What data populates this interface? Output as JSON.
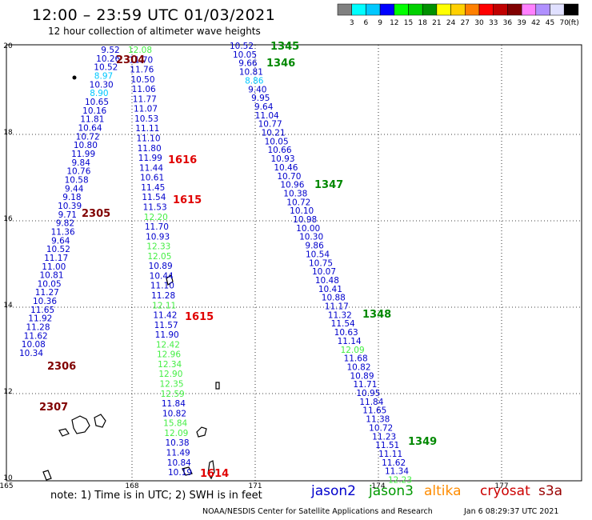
{
  "header": {
    "title": "12:00 – 23:59 UTC 01/03/2021",
    "subtitle": "12 hour collection of altimeter wave heights"
  },
  "colorbar": {
    "unit": "(ft)",
    "colors": [
      "#808080",
      "#00ffff",
      "#00c8ff",
      "#0000ff",
      "#00ff00",
      "#00d000",
      "#009000",
      "#ffff00",
      "#ffd000",
      "#ff8000",
      "#ff0000",
      "#c00000",
      "#800000",
      "#ff80ff",
      "#b090ff",
      "#e0e0ff",
      "#000000"
    ],
    "labels": [
      "3",
      "6",
      "9",
      "12",
      "15",
      "18",
      "21",
      "24",
      "27",
      "30",
      "33",
      "36",
      "39",
      "42",
      "45",
      "70"
    ]
  },
  "axes": {
    "lon_ticks": [
      "165",
      "168",
      "171",
      "174",
      "177"
    ],
    "lat_ticks": [
      "20",
      "18",
      "16",
      "14",
      "12",
      "10"
    ]
  },
  "footer": {
    "note": "note:  1) Time is in UTC;  2) SWH is in feet",
    "credit": "NOAA/NESDIS Center for Satellite Applications and Research",
    "timestamp": "Jan  6 08:29:37 UTC 2021",
    "satellites": [
      {
        "name": "jason2",
        "color": "#0000cc"
      },
      {
        "name": "jason3",
        "color": "#009900"
      },
      {
        "name": "altika",
        "color": "#ff8c00"
      },
      {
        "name": "cryosat",
        "color": "#cc0000"
      },
      {
        "name": "s3a",
        "color": "#990000"
      }
    ]
  },
  "colors": {
    "j2": "#0000cc",
    "j3light": "#44ee44",
    "cyan": "#00c8ff",
    "j3pass": "#008800",
    "cryopass": "#e00000",
    "s3apass": "#800000"
  },
  "tracks": [
    {
      "name": "track-s3a",
      "items": [
        {
          "t": "9.52",
          "c": "j2"
        },
        {
          "t": "10.26",
          "c": "j2"
        },
        {
          "t": "10.52",
          "c": "j2"
        },
        {
          "t": "8.97",
          "c": "cyan"
        },
        {
          "t": "10.30",
          "c": "j2"
        },
        {
          "t": "8.90",
          "c": "cyan"
        },
        {
          "t": "10.65",
          "c": "j2"
        },
        {
          "t": "10.16",
          "c": "j2"
        },
        {
          "t": "11.81",
          "c": "j2"
        },
        {
          "t": "10.64",
          "c": "j2"
        },
        {
          "t": "10.72",
          "c": "j2"
        },
        {
          "t": "10.80",
          "c": "j2"
        },
        {
          "t": "11.99",
          "c": "j2"
        },
        {
          "t": "9.84",
          "c": "j2"
        },
        {
          "t": "10.76",
          "c": "j2"
        },
        {
          "t": "10.58",
          "c": "j2"
        },
        {
          "t": "9.44",
          "c": "j2"
        },
        {
          "t": "9.18",
          "c": "j2"
        },
        {
          "t": "10.39",
          "c": "j2"
        },
        {
          "t": "9.71",
          "c": "j2"
        },
        {
          "t": "9.82",
          "c": "j2"
        },
        {
          "t": "11.36",
          "c": "j2"
        },
        {
          "t": "9.64",
          "c": "j2"
        },
        {
          "t": "10.52",
          "c": "j2"
        },
        {
          "t": "11.17",
          "c": "j2"
        },
        {
          "t": "11.00",
          "c": "j2"
        },
        {
          "t": "10.81",
          "c": "j2"
        },
        {
          "t": "10.05",
          "c": "j2"
        },
        {
          "t": "11.27",
          "c": "j2"
        },
        {
          "t": "10.36",
          "c": "j2"
        },
        {
          "t": "11.65",
          "c": "j2"
        },
        {
          "t": "11.92",
          "c": "j2"
        },
        {
          "t": "11.28",
          "c": "j2"
        },
        {
          "t": "11.62",
          "c": "j2"
        },
        {
          "t": "10.08",
          "c": "j2"
        },
        {
          "t": "10.34",
          "c": "j2"
        }
      ]
    },
    {
      "name": "track-cryosat",
      "items": [
        {
          "t": "12.08",
          "c": "j3light"
        },
        {
          "t": "11.70",
          "c": "j2"
        },
        {
          "t": "11.76",
          "c": "j2"
        },
        {
          "t": "10.50",
          "c": "j2"
        },
        {
          "t": "11.06",
          "c": "j2"
        },
        {
          "t": "11.77",
          "c": "j2"
        },
        {
          "t": "11.07",
          "c": "j2"
        },
        {
          "t": "10.53",
          "c": "j2"
        },
        {
          "t": "11.11",
          "c": "j2"
        },
        {
          "t": "11.10",
          "c": "j2"
        },
        {
          "t": "11.80",
          "c": "j2"
        },
        {
          "t": "11.99",
          "c": "j2"
        },
        {
          "t": "11.44",
          "c": "j2"
        },
        {
          "t": "10.61",
          "c": "j2"
        },
        {
          "t": "11.45",
          "c": "j2"
        },
        {
          "t": "11.54",
          "c": "j2"
        },
        {
          "t": "11.53",
          "c": "j2"
        },
        {
          "t": "12.20",
          "c": "j3light"
        },
        {
          "t": "11.70",
          "c": "j2"
        },
        {
          "t": "10.93",
          "c": "j2"
        },
        {
          "t": "12.33",
          "c": "j3light"
        },
        {
          "t": "12.05",
          "c": "j3light"
        },
        {
          "t": "10.89",
          "c": "j2"
        },
        {
          "t": "10.44",
          "c": "j2"
        },
        {
          "t": "11.10",
          "c": "j2"
        },
        {
          "t": "11.28",
          "c": "j2"
        },
        {
          "t": "12.11",
          "c": "j3light"
        },
        {
          "t": "11.42",
          "c": "j2"
        },
        {
          "t": "11.57",
          "c": "j2"
        },
        {
          "t": "11.90",
          "c": "j2"
        },
        {
          "t": "12.42",
          "c": "j3light"
        },
        {
          "t": "12.96",
          "c": "j3light"
        },
        {
          "t": "12.34",
          "c": "j3light"
        },
        {
          "t": "12.90",
          "c": "j3light"
        },
        {
          "t": "12.35",
          "c": "j3light"
        },
        {
          "t": "12.59",
          "c": "j3light"
        },
        {
          "t": "11.84",
          "c": "j2"
        },
        {
          "t": "10.82",
          "c": "j2"
        },
        {
          "t": "15.84",
          "c": "j3light"
        },
        {
          "t": "12.09",
          "c": "j3light"
        },
        {
          "t": "10.38",
          "c": "j2"
        },
        {
          "t": "11.49",
          "c": "j2"
        },
        {
          "t": "10.84",
          "c": "j2"
        },
        {
          "t": "10.19",
          "c": "j2"
        }
      ]
    },
    {
      "name": "track-jason3",
      "items": [
        {
          "t": "10.52",
          "c": "j2"
        },
        {
          "t": "10.05",
          "c": "j2"
        },
        {
          "t": "9.66",
          "c": "j2"
        },
        {
          "t": "10.81",
          "c": "j2"
        },
        {
          "t": "8.86",
          "c": "cyan"
        },
        {
          "t": "9.40",
          "c": "j2"
        },
        {
          "t": "9.95",
          "c": "j2"
        },
        {
          "t": "9.64",
          "c": "j2"
        },
        {
          "t": "11.04",
          "c": "j2"
        },
        {
          "t": "10.77",
          "c": "j2"
        },
        {
          "t": "10.21",
          "c": "j2"
        },
        {
          "t": "10.05",
          "c": "j2"
        },
        {
          "t": "10.66",
          "c": "j2"
        },
        {
          "t": "10.93",
          "c": "j2"
        },
        {
          "t": "10.46",
          "c": "j2"
        },
        {
          "t": "10.70",
          "c": "j2"
        },
        {
          "t": "10.96",
          "c": "j2"
        },
        {
          "t": "10.38",
          "c": "j2"
        },
        {
          "t": "10.72",
          "c": "j2"
        },
        {
          "t": "10.10",
          "c": "j2"
        },
        {
          "t": "10.98",
          "c": "j2"
        },
        {
          "t": "10.00",
          "c": "j2"
        },
        {
          "t": "10.30",
          "c": "j2"
        },
        {
          "t": "9.86",
          "c": "j2"
        },
        {
          "t": "10.54",
          "c": "j2"
        },
        {
          "t": "10.75",
          "c": "j2"
        },
        {
          "t": "10.07",
          "c": "j2"
        },
        {
          "t": "10.48",
          "c": "j2"
        },
        {
          "t": "10.41",
          "c": "j2"
        },
        {
          "t": "10.88",
          "c": "j2"
        },
        {
          "t": "11.17",
          "c": "j2"
        },
        {
          "t": "11.32",
          "c": "j2"
        },
        {
          "t": "11.54",
          "c": "j2"
        },
        {
          "t": "10.63",
          "c": "j2"
        },
        {
          "t": "11.14",
          "c": "j2"
        },
        {
          "t": "12.09",
          "c": "j3light"
        },
        {
          "t": "11.68",
          "c": "j2"
        },
        {
          "t": "10.82",
          "c": "j2"
        },
        {
          "t": "10.89",
          "c": "j2"
        },
        {
          "t": "11.71",
          "c": "j2"
        },
        {
          "t": "10.95",
          "c": "j2"
        },
        {
          "t": "11.84",
          "c": "j2"
        },
        {
          "t": "11.65",
          "c": "j2"
        },
        {
          "t": "11.38",
          "c": "j2"
        },
        {
          "t": "10.72",
          "c": "j2"
        },
        {
          "t": "11.23",
          "c": "j2"
        },
        {
          "t": "11.51",
          "c": "j2"
        },
        {
          "t": "11.11",
          "c": "j2"
        },
        {
          "t": "11.62",
          "c": "j2"
        },
        {
          "t": "11.34",
          "c": "j2"
        },
        {
          "t": "12.23",
          "c": "j3light"
        }
      ]
    }
  ],
  "pass_labels": [
    {
      "t": "2304",
      "c": "s3apass"
    },
    {
      "t": "2305",
      "c": "s3apass"
    },
    {
      "t": "2306",
      "c": "s3apass"
    },
    {
      "t": "2307",
      "c": "s3apass"
    },
    {
      "t": "1616",
      "c": "cryopass"
    },
    {
      "t": "1615",
      "c": "cryopass"
    },
    {
      "t": "1615",
      "c": "cryopass"
    },
    {
      "t": "1614",
      "c": "cryopass"
    },
    {
      "t": "1345",
      "c": "j3pass"
    },
    {
      "t": "1346",
      "c": "j3pass"
    },
    {
      "t": "1347",
      "c": "j3pass"
    },
    {
      "t": "1348",
      "c": "j3pass"
    },
    {
      "t": "1349",
      "c": "j3pass"
    }
  ]
}
